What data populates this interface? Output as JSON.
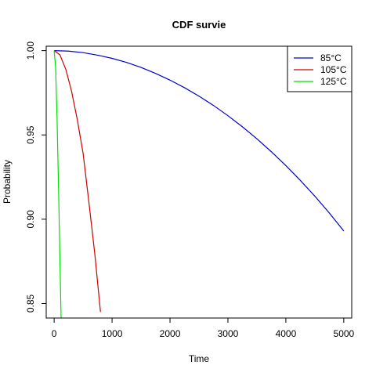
{
  "chart_data": {
    "type": "line",
    "title": "CDF survie",
    "xlabel": "Time",
    "ylabel": "Probability",
    "xlim": [
      -137,
      5137
    ],
    "ylim": [
      0.8414,
      1.0026
    ],
    "x_ticks": [
      0,
      1000,
      2000,
      3000,
      4000,
      5000
    ],
    "x_tick_labels": [
      "0",
      "1000",
      "2000",
      "3000",
      "4000",
      "5000"
    ],
    "y_ticks": [
      0.85,
      0.9,
      0.95,
      1.0
    ],
    "y_tick_labels": [
      "0.85",
      "0.90",
      "0.95",
      "1.00"
    ],
    "grid": false,
    "legend_position": "top-right",
    "series": [
      {
        "name": "85°C",
        "color": "#0000CD",
        "x": [
          0,
          250,
          500,
          750,
          1000,
          1250,
          1500,
          1750,
          2000,
          2250,
          2500,
          2750,
          3000,
          3250,
          3500,
          3750,
          4000,
          4250,
          4500,
          4750,
          5000
        ],
        "y": [
          1.0,
          0.9997,
          0.9988,
          0.9973,
          0.9954,
          0.993,
          0.99,
          0.9865,
          0.9825,
          0.978,
          0.973,
          0.9675,
          0.9614,
          0.9548,
          0.9477,
          0.94,
          0.9318,
          0.923,
          0.9137,
          0.9037,
          0.893
        ]
      },
      {
        "name": "105°C",
        "color": "#CD0000",
        "x": [
          0,
          100,
          200,
          300,
          400,
          500,
          600,
          700,
          800
        ],
        "y": [
          1.0,
          0.9975,
          0.989,
          0.976,
          0.959,
          0.939,
          0.91,
          0.88,
          0.845
        ]
      },
      {
        "name": "125°C",
        "color": "#00E000",
        "x": [
          0,
          25,
          50,
          75,
          100,
          120
        ],
        "y": [
          1.0,
          0.99,
          0.96,
          0.92,
          0.875,
          0.8414
        ]
      }
    ]
  }
}
